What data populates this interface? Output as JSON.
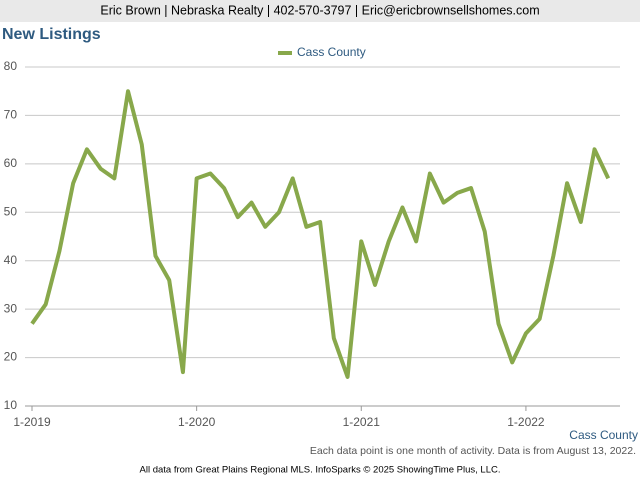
{
  "header": "Eric Brown | Nebraska Realty | 402-570-3797 | Eric@ericbrownsellshomes.com",
  "chart_data": {
    "type": "line",
    "title": "New Listings",
    "categories": [
      "1-2019",
      null,
      null,
      null,
      null,
      null,
      null,
      null,
      null,
      null,
      null,
      null,
      "1-2020",
      null,
      null,
      null,
      null,
      null,
      null,
      null,
      null,
      null,
      null,
      null,
      "1-2021",
      null,
      null,
      null,
      null,
      null,
      null,
      null,
      null,
      null,
      null,
      null,
      "1-2022",
      null,
      null,
      null,
      null,
      null,
      null
    ],
    "series": [
      {
        "name": "Cass County",
        "color": "#88a84b",
        "values": [
          27,
          31,
          42,
          56,
          63,
          59,
          57,
          75,
          64,
          41,
          36,
          17,
          57,
          58,
          55,
          49,
          52,
          47,
          50,
          57,
          47,
          48,
          24,
          16,
          44,
          35,
          44,
          51,
          44,
          58,
          52,
          54,
          55,
          46,
          27,
          19,
          25,
          28,
          41,
          56,
          48,
          63,
          57
        ]
      }
    ],
    "ylim": [
      10,
      80
    ],
    "yticks": [
      10,
      20,
      30,
      40,
      50,
      60,
      70,
      80
    ],
    "grid": true,
    "caption": "Cass County",
    "note": "Each data point is one month of activity. Data is from August 13, 2022."
  },
  "footer": "All data from Great Plains Regional MLS. InfoSparks © 2025 ShowingTime Plus, LLC."
}
